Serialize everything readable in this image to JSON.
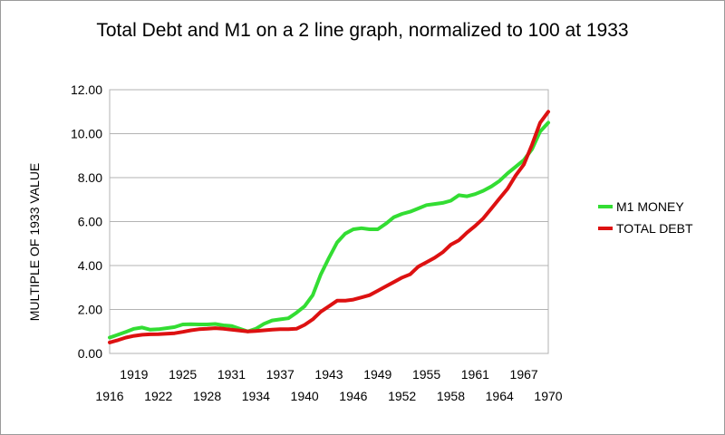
{
  "chart_data": {
    "type": "line",
    "title": "Total Debt and M1 on a 2 line graph, normalized to 100 at 1933",
    "xlabel": "",
    "ylabel": "MULTIPLE OF 1933 VALUE",
    "xlim": [
      1916,
      1970
    ],
    "ylim": [
      0,
      12
    ],
    "y_ticks": [
      "0.00",
      "2.00",
      "4.00",
      "6.00",
      "8.00",
      "10.00",
      "12.00"
    ],
    "x_ticks": [
      "1916",
      "1919",
      "1922",
      "1925",
      "1928",
      "1931",
      "1934",
      "1937",
      "1940",
      "1943",
      "1946",
      "1949",
      "1952",
      "1955",
      "1958",
      "1961",
      "1964",
      "1967",
      "1970"
    ],
    "grid": "horizontal",
    "legend_position": "right",
    "series": [
      {
        "name": "M1 MONEY",
        "color": "#33dd33",
        "x": [
          1916,
          1917,
          1918,
          1919,
          1920,
          1921,
          1922,
          1923,
          1924,
          1925,
          1926,
          1927,
          1928,
          1929,
          1930,
          1931,
          1933,
          1934,
          1935,
          1936,
          1937,
          1938,
          1939,
          1940,
          1941,
          1942,
          1943,
          1944,
          1945,
          1946,
          1947,
          1948,
          1949,
          1950,
          1951,
          1952,
          1953,
          1954,
          1955,
          1956,
          1957,
          1958,
          1959,
          1960,
          1961,
          1962,
          1963,
          1964,
          1965,
          1966,
          1967,
          1968,
          1969,
          1970
        ],
        "y": [
          0.72,
          0.85,
          0.98,
          1.12,
          1.18,
          1.08,
          1.1,
          1.15,
          1.2,
          1.32,
          1.33,
          1.32,
          1.32,
          1.34,
          1.28,
          1.25,
          1.0,
          1.12,
          1.35,
          1.5,
          1.55,
          1.6,
          1.85,
          2.15,
          2.65,
          3.6,
          4.35,
          5.05,
          5.45,
          5.65,
          5.7,
          5.65,
          5.65,
          5.9,
          6.2,
          6.35,
          6.45,
          6.6,
          6.75,
          6.8,
          6.85,
          6.95,
          7.2,
          7.15,
          7.25,
          7.4,
          7.6,
          7.85,
          8.2,
          8.5,
          8.8,
          9.3,
          10.1,
          10.5
        ]
      },
      {
        "name": "TOTAL DEBT",
        "color": "#dd1111",
        "x": [
          1916,
          1917,
          1918,
          1919,
          1920,
          1921,
          1922,
          1923,
          1924,
          1925,
          1926,
          1927,
          1928,
          1929,
          1930,
          1931,
          1932,
          1933,
          1934,
          1935,
          1936,
          1937,
          1938,
          1939,
          1940,
          1941,
          1942,
          1943,
          1944,
          1945,
          1946,
          1947,
          1948,
          1949,
          1950,
          1951,
          1952,
          1953,
          1954,
          1955,
          1956,
          1957,
          1958,
          1959,
          1960,
          1961,
          1962,
          1963,
          1964,
          1965,
          1966,
          1967,
          1968,
          1969,
          1970
        ],
        "y": [
          0.5,
          0.6,
          0.72,
          0.8,
          0.85,
          0.87,
          0.88,
          0.9,
          0.92,
          0.98,
          1.05,
          1.1,
          1.12,
          1.15,
          1.12,
          1.08,
          1.04,
          1.0,
          1.02,
          1.05,
          1.08,
          1.1,
          1.1,
          1.12,
          1.3,
          1.55,
          1.9,
          2.15,
          2.4,
          2.4,
          2.45,
          2.55,
          2.65,
          2.85,
          3.05,
          3.25,
          3.45,
          3.6,
          3.95,
          4.15,
          4.35,
          4.6,
          4.95,
          5.15,
          5.5,
          5.8,
          6.15,
          6.6,
          7.05,
          7.5,
          8.1,
          8.6,
          9.5,
          10.5,
          11.0
        ]
      }
    ]
  }
}
